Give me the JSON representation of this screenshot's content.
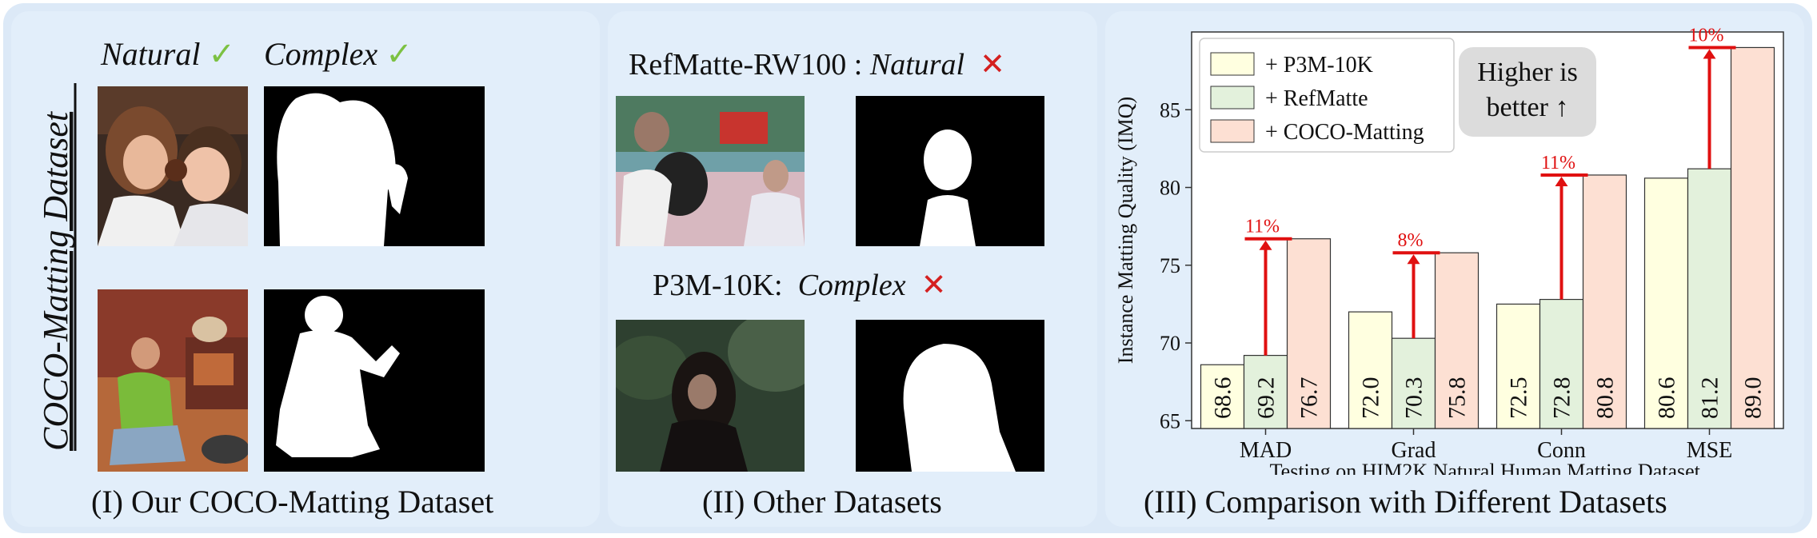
{
  "panel1": {
    "title": "COCO-Matting Dataset",
    "col1_label": "Natural",
    "col2_label": "Complex",
    "check": "✓",
    "caption": "(I) Our COCO-Matting Dataset"
  },
  "panel2": {
    "row1_prefix": "RefMatte-RW100 :",
    "row1_word": "Natural",
    "row2_prefix": "P3M-10K:",
    "row2_word": "Complex",
    "cross": "✕",
    "caption": "(II) Other Datasets"
  },
  "panel3": {
    "caption": "(III) Comparison with Different Datasets",
    "note": "Higher is better ↑"
  },
  "chart_data": {
    "type": "bar",
    "categories": [
      "MAD",
      "Grad",
      "Conn",
      "MSE"
    ],
    "series": [
      {
        "name": "+ P3M-10K",
        "values": [
          68.6,
          72.0,
          72.5,
          80.6
        ],
        "color": "#ffffe0"
      },
      {
        "name": "+ RefMatte",
        "values": [
          69.2,
          70.3,
          72.8,
          81.2
        ],
        "color": "#e3f1dc"
      },
      {
        "name": "+ COCO-Matting",
        "values": [
          76.7,
          75.8,
          80.8,
          89.0
        ],
        "color": "#fde0d3"
      }
    ],
    "gains": [
      "11%",
      "8%",
      "11%",
      "10%"
    ],
    "ylabel": "Instance Matting Quality (IMQ)",
    "xlabel": "Testing on HIM2K Natural Human Matting Dataset.",
    "ylim": [
      64.5,
      90
    ],
    "yticks": [
      65,
      70,
      75,
      80,
      85
    ],
    "legend": "top-left",
    "grid": false
  }
}
